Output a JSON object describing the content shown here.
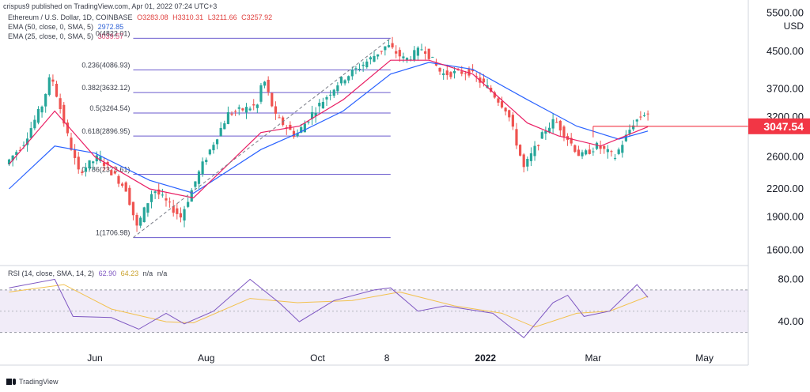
{
  "publisher": "crispus9 published on TradingView.com, Apr 01, 2022 07:24 UTC+3",
  "footer": {
    "brand": "TradingView",
    "logo_icon": "tradingview-logo-icon"
  },
  "header": {
    "symbol": "Ethereum / U.S. Dollar, 1D, COINBASE",
    "open": "O3283.08",
    "high": "H3310.31",
    "low": "L3211.66",
    "close": "C3257.92",
    "ema50_label": "EMA (50, close, 0, SMA, 5)",
    "ema50_value": "2972.85",
    "ema25_label": "EMA (25, close, 0, SMA, 5)",
    "ema25_value": "3039.57",
    "rsi_label": "RSI (14, close, SMA, 14, 2)",
    "rsi_value": "62.90",
    "rsi_ma_value": "64.23",
    "na1": "n/a",
    "na2": "n/a"
  },
  "colors": {
    "up": "#26a69a",
    "down": "#ef5350",
    "ema50": "#2962ff",
    "ema25": "#e91e63",
    "fib": "#6a5acd",
    "rsi": "#7e57c2",
    "rsi_ma": "#f2c14e",
    "price_tag": "#f23645"
  },
  "chart_data": [
    {
      "type": "candlestick",
      "title": "Ethereum / U.S. Dollar, 1D, COINBASE",
      "currency": "USD",
      "price_scale": "log",
      "ylim": [
        1500,
        5600
      ],
      "yticks": [
        "5500.00",
        "4500.00",
        "3700.00",
        "3200.00",
        "2600.00",
        "2200.00",
        "1900.00",
        "1600.00"
      ],
      "xticks": [
        "Jun",
        "Aug",
        "Oct",
        "8",
        "2022",
        "Mar",
        "May"
      ],
      "current_price": "3047.54",
      "series": [
        {
          "name": "Price",
          "x": [
            "2021-04-15",
            "2021-04-25",
            "2021-05-05",
            "2021-05-10",
            "2021-05-19",
            "2021-05-25",
            "2021-06-05",
            "2021-06-20",
            "2021-06-26",
            "2021-07-05",
            "2021-07-20",
            "2021-07-31",
            "2021-08-15",
            "2021-08-31",
            "2021-09-03",
            "2021-09-10",
            "2021-09-21",
            "2021-10-01",
            "2021-10-15",
            "2021-10-31",
            "2021-11-10",
            "2021-11-20",
            "2021-11-30",
            "2021-12-10",
            "2021-12-25",
            "2022-01-05",
            "2022-01-15",
            "2022-01-24",
            "2022-02-05",
            "2022-02-10",
            "2022-02-24",
            "2022-03-05",
            "2022-03-15",
            "2022-03-25",
            "2022-03-31"
          ],
          "y": [
            2500,
            2800,
            3400,
            4000,
            2900,
            2400,
            2600,
            2200,
            1800,
            2200,
            1900,
            2450,
            3250,
            3400,
            3950,
            3200,
            2900,
            3300,
            3850,
            4300,
            4650,
            4300,
            4600,
            4000,
            4050,
            3700,
            3300,
            2450,
            3000,
            3150,
            2600,
            2750,
            2600,
            3100,
            3258
          ]
        },
        {
          "name": "EMA (50, close, 0, SMA, 5)",
          "x": [
            "2021-04-15",
            "2021-05-10",
            "2021-06-01",
            "2021-07-01",
            "2021-07-25",
            "2021-08-31",
            "2021-09-21",
            "2021-10-15",
            "2021-11-10",
            "2021-12-01",
            "2021-12-25",
            "2022-01-24",
            "2022-02-20",
            "2022-03-15",
            "2022-03-31"
          ],
          "y": [
            2200,
            2750,
            2650,
            2300,
            2150,
            2700,
            2950,
            3300,
            4000,
            4250,
            4100,
            3500,
            3050,
            2850,
            2973
          ]
        },
        {
          "name": "EMA (25, close, 0, SMA, 5)",
          "x": [
            "2021-04-15",
            "2021-05-10",
            "2021-06-01",
            "2021-07-01",
            "2021-07-25",
            "2021-08-31",
            "2021-09-21",
            "2021-10-15",
            "2021-11-10",
            "2021-12-01",
            "2021-12-25",
            "2022-01-24",
            "2022-02-10",
            "2022-03-05",
            "2022-03-31"
          ],
          "y": [
            2500,
            3300,
            2600,
            2200,
            2100,
            2950,
            3050,
            3500,
            4300,
            4300,
            4000,
            3100,
            2900,
            2750,
            3040
          ]
        }
      ],
      "fibonacci": {
        "levels": [
          {
            "label": "0(4822.01)",
            "price": 4822
          },
          {
            "label": "0.236(4086.93)",
            "price": 4087
          },
          {
            "label": "0.382(3632.12)",
            "price": 3632
          },
          {
            "label": "0.5(3264.54)",
            "price": 3265
          },
          {
            "label": "0.618(2896.95)",
            "price": 2897
          },
          {
            "label": "0.786(2373.61)",
            "price": 2374
          },
          {
            "label": "1(1706.98)",
            "price": 1707
          }
        ],
        "from": "2021-06-22",
        "to": "2021-11-10"
      },
      "annotations": [
        {
          "type": "trendline",
          "x1": "2021-06-22",
          "y1": 1707,
          "x2": "2021-11-10",
          "y2": 4822
        },
        {
          "type": "horizontal-ray",
          "x1": "2022-03-01",
          "y": 3047.54
        }
      ]
    },
    {
      "type": "line",
      "title": "RSI (14, close, SMA, 14, 2)",
      "ylim": [
        20,
        90
      ],
      "yticks": [
        "80.00",
        "40.00"
      ],
      "band": [
        30,
        70
      ],
      "midline": 50,
      "series": [
        {
          "name": "RSI",
          "x": [
            "2021-04-15",
            "2021-05-10",
            "2021-05-20",
            "2021-06-10",
            "2021-06-25",
            "2021-07-10",
            "2021-07-20",
            "2021-08-05",
            "2021-08-25",
            "2021-09-10",
            "2021-09-21",
            "2021-10-10",
            "2021-11-01",
            "2021-11-10",
            "2021-11-25",
            "2021-12-10",
            "2022-01-05",
            "2022-01-22",
            "2022-02-07",
            "2022-02-15",
            "2022-02-24",
            "2022-03-10",
            "2022-03-25",
            "2022-03-31"
          ],
          "y": [
            72,
            80,
            45,
            44,
            33,
            48,
            38,
            50,
            80,
            58,
            40,
            60,
            70,
            72,
            50,
            55,
            48,
            25,
            58,
            65,
            45,
            50,
            75,
            63
          ]
        },
        {
          "name": "MA",
          "x": [
            "2021-04-15",
            "2021-05-15",
            "2021-06-10",
            "2021-07-10",
            "2021-07-25",
            "2021-08-25",
            "2021-09-20",
            "2021-10-20",
            "2021-11-15",
            "2021-12-15",
            "2022-01-10",
            "2022-01-28",
            "2022-02-20",
            "2022-03-10",
            "2022-03-31"
          ],
          "y": [
            68,
            75,
            52,
            40,
            39,
            62,
            58,
            60,
            68,
            55,
            48,
            35,
            48,
            50,
            64
          ]
        }
      ]
    }
  ]
}
